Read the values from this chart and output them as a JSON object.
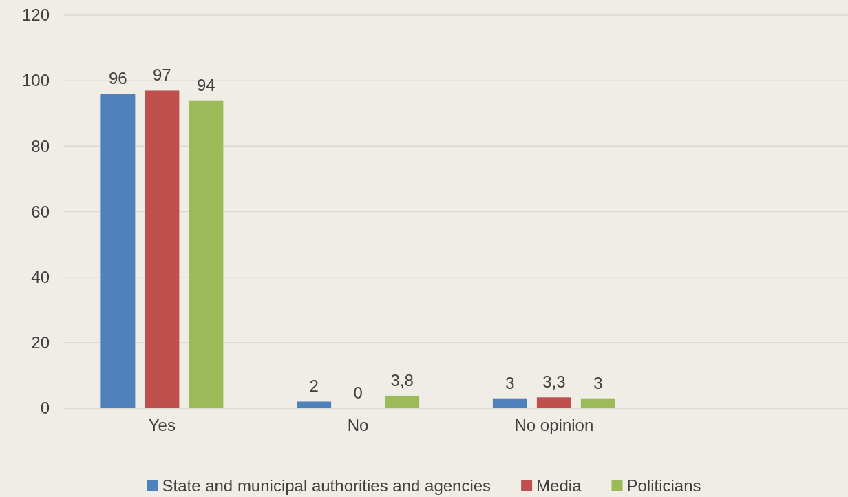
{
  "chart_data": {
    "type": "bar",
    "categories": [
      "Yes",
      "No",
      "No opinion",
      null
    ],
    "series": [
      {
        "name": "State and municipal authorities and agencies",
        "color": "#4f81bd",
        "values": [
          96,
          2,
          3,
          null
        ],
        "value_labels": [
          "96",
          "2",
          "3",
          null
        ]
      },
      {
        "name": "Media",
        "color": "#c0504d",
        "values": [
          97,
          0,
          3.3,
          null
        ],
        "value_labels": [
          "97",
          "0",
          "3,3",
          null
        ]
      },
      {
        "name": "Politicians",
        "color": "#9bbb59",
        "values": [
          94,
          3.8,
          3,
          null
        ],
        "value_labels": [
          "94",
          "3,8",
          "3",
          null
        ]
      }
    ],
    "ylim": [
      0,
      120
    ],
    "yticks": [
      0,
      20,
      40,
      60,
      80,
      100,
      120
    ],
    "grid": "y",
    "legend": "bottom"
  }
}
